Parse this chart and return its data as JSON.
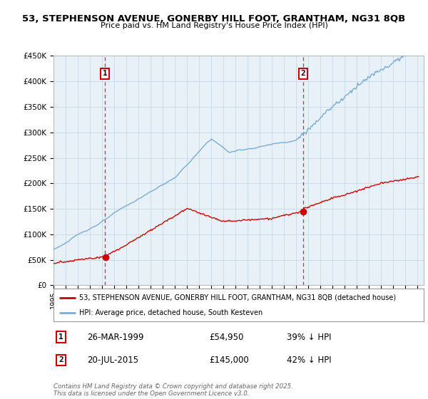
{
  "title1": "53, STEPHENSON AVENUE, GONERBY HILL FOOT, GRANTHAM, NG31 8QB",
  "title2": "Price paid vs. HM Land Registry's House Price Index (HPI)",
  "legend_line1": "53, STEPHENSON AVENUE, GONERBY HILL FOOT, GRANTHAM, NG31 8QB (detached house)",
  "legend_line2": "HPI: Average price, detached house, South Kesteven",
  "ann1_date": "26-MAR-1999",
  "ann1_price": "£54,950",
  "ann1_note": "39% ↓ HPI",
  "ann2_date": "20-JUL-2015",
  "ann2_price": "£145,000",
  "ann2_note": "42% ↓ HPI",
  "footer": "Contains HM Land Registry data © Crown copyright and database right 2025.\nThis data is licensed under the Open Government Licence v3.0.",
  "red_color": "#cc0000",
  "blue_color": "#7aadd4",
  "background_color": "#ffffff",
  "plot_bg_color": "#e8f0f8",
  "grid_color": "#c8d8e8",
  "ylim_max": 450000,
  "xlim_min": 1995,
  "xlim_max": 2025.5
}
